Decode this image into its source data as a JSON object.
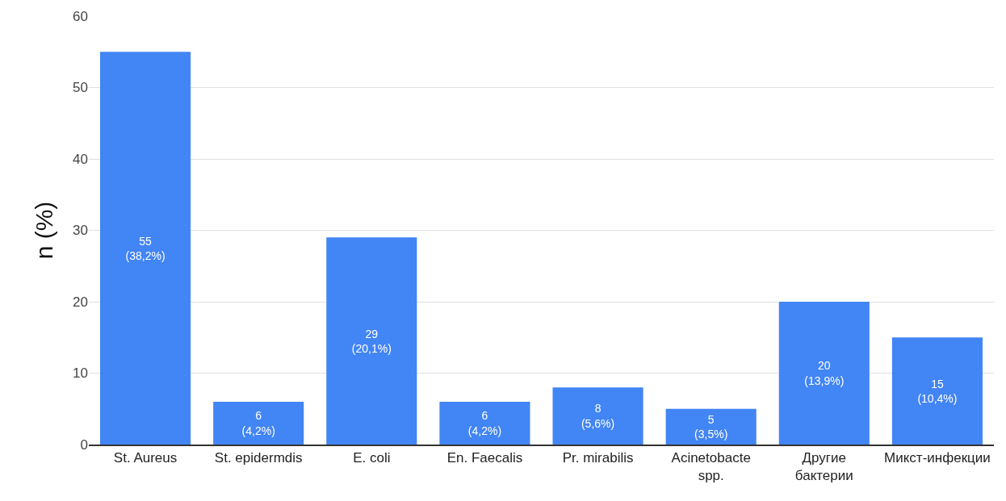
{
  "chart_data": {
    "type": "bar",
    "ylabel": "n (%)",
    "categories": [
      "St. Aureus",
      "St. epidermdis",
      "E. coli",
      "En. Faecalis",
      "Pr. mirabilis",
      "Acinetobacte\nspp.",
      "Другие\nбактерии",
      "Микст-инфекции"
    ],
    "values": [
      55,
      6,
      29,
      6,
      8,
      5,
      20,
      15
    ],
    "value_labels": [
      "55\n(38,2%)",
      "6\n(4,2%)",
      "29\n(20,1%)",
      "6\n(4,2%)",
      "8\n(5,6%)",
      "5\n(3,5%)",
      "20\n(13,9%)",
      "15\n(10,4%)"
    ],
    "color": "#4285f4",
    "ylim": [
      0,
      60
    ],
    "yticks": [
      0,
      10,
      20,
      30,
      40,
      50,
      60
    ],
    "grid": "y",
    "legend": false
  }
}
